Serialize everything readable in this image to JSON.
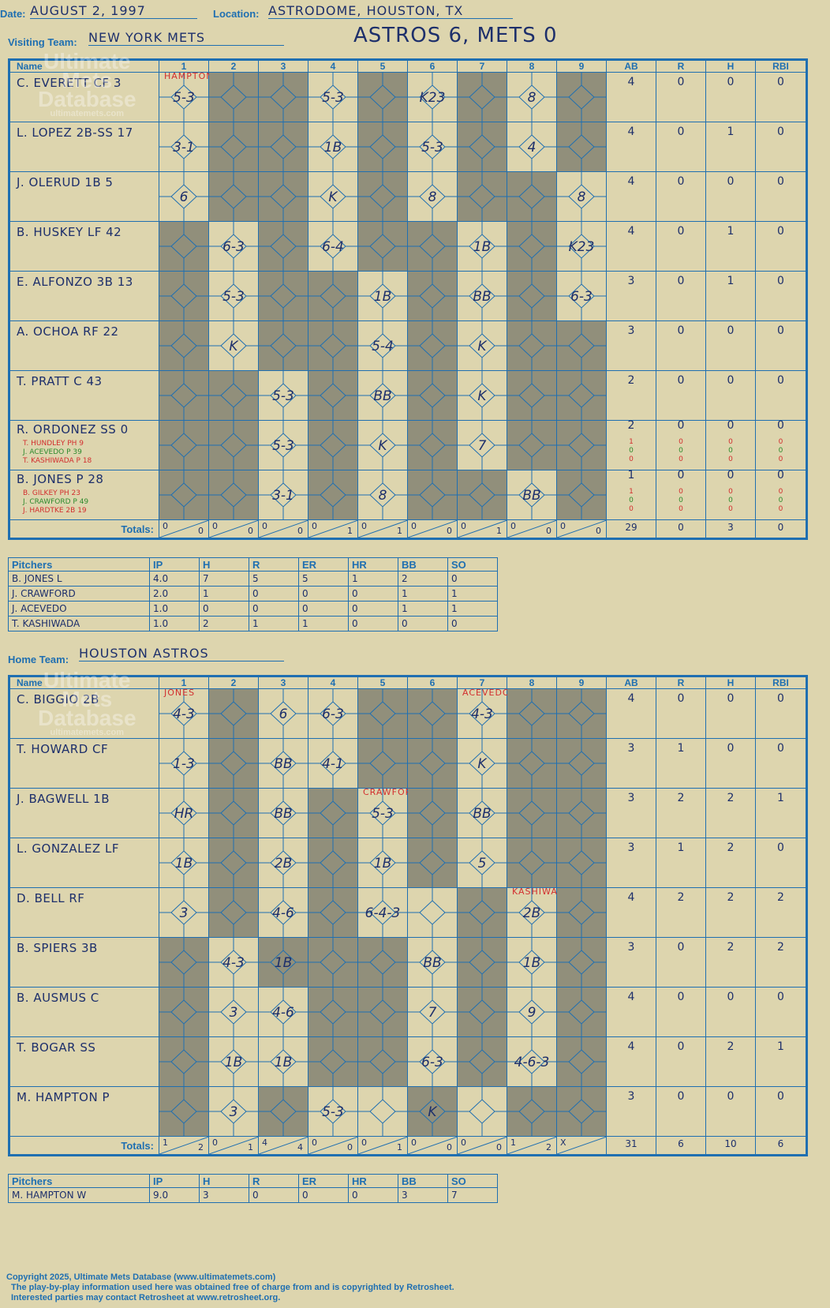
{
  "header": {
    "date_label": "Date:",
    "date": "AUGUST 2, 1997",
    "location_label": "Location:",
    "location": "ASTRODOME, HOUSTON, TX",
    "visiting_label": "Visiting Team:",
    "visiting": "NEW YORK METS",
    "score_title": "ASTROS 6, METS 0",
    "home_label": "Home Team:",
    "home": "HOUSTON ASTROS"
  },
  "columns": [
    "Name",
    "1",
    "2",
    "3",
    "4",
    "5",
    "6",
    "7",
    "8",
    "9",
    "AB",
    "R",
    "H",
    "RBI"
  ],
  "totals_label": "Totals:",
  "watermark": {
    "line1": "Ultimate",
    "line2": "Mets",
    "line3": "Database",
    "url": "ultimatemets.com"
  },
  "visitors": {
    "pitcher_marks": {
      "1": "HAMPTON"
    },
    "batters": [
      {
        "name": "C. EVERETT  CF  3",
        "ab": "4",
        "r": "0",
        "h": "0",
        "rbi": "0"
      },
      {
        "name": "L. LOPEZ  2B-SS  17",
        "ab": "4",
        "r": "0",
        "h": "1",
        "rbi": "0"
      },
      {
        "name": "J. OLERUD  1B   5",
        "ab": "4",
        "r": "0",
        "h": "0",
        "rbi": "0"
      },
      {
        "name": "B. HUSKEY  LF   42",
        "ab": "4",
        "r": "0",
        "h": "1",
        "rbi": "0"
      },
      {
        "name": "E. ALFONZO  3B   13",
        "ab": "3",
        "r": "0",
        "h": "1",
        "rbi": "0"
      },
      {
        "name": "A. OCHOA  RF   22",
        "ab": "3",
        "r": "0",
        "h": "0",
        "rbi": "0"
      },
      {
        "name": "T. PRATT  C   43",
        "ab": "2",
        "r": "0",
        "h": "0",
        "rbi": "0"
      },
      {
        "name": "R. ORDONEZ  SS   0",
        "ab": "2",
        "r": "0",
        "h": "0",
        "rbi": "0",
        "subs": [
          {
            "name": "T. HUNDLEY  PH  9",
            "color": "red",
            "ab": "1",
            "r": "0",
            "h": "0",
            "rbi": "0"
          },
          {
            "name": "J. ACEVEDO  P  39",
            "color": "green",
            "ab": "0",
            "r": "0",
            "h": "0",
            "rbi": "0"
          },
          {
            "name": "T. KASHIWADA  P  18",
            "color": "red",
            "ab": "0",
            "r": "0",
            "h": "0",
            "rbi": "0"
          }
        ]
      },
      {
        "name": "B. JONES  P   28",
        "ab": "1",
        "r": "0",
        "h": "0",
        "rbi": "0",
        "subs": [
          {
            "name": "B. GILKEY  PH  23",
            "color": "red",
            "ab": "1",
            "r": "0",
            "h": "0",
            "rbi": "0"
          },
          {
            "name": "J. CRAWFORD  P  49",
            "color": "green",
            "ab": "0",
            "r": "0",
            "h": "0",
            "rbi": "0"
          },
          {
            "name": "J. HARDTKE  2B  19",
            "color": "red",
            "ab": "0",
            "r": "0",
            "h": "0",
            "rbi": "0"
          }
        ]
      }
    ],
    "plays": [
      {
        "1": "5-3",
        "4": "5-3",
        "6": "K23",
        "8": "8"
      },
      {
        "1": "3-1",
        "4": "1B",
        "6": "5-3",
        "8": "4"
      },
      {
        "1": "6",
        "4": "K",
        "6": "8",
        "9": "8"
      },
      {
        "2": "6-3",
        "4": "6-4",
        "7": "1B",
        "9": "K23"
      },
      {
        "2": "5-3",
        "5": "1B",
        "7": "BB",
        "9": "6-3"
      },
      {
        "2": "K",
        "5": "5-4",
        "7": "K"
      },
      {
        "3": "5-3",
        "5": "BB",
        "7": "K"
      },
      {
        "3": "5-3",
        "5": "K",
        "7": "7"
      },
      {
        "3": "3-1",
        "5": "8",
        "8": "BB"
      }
    ],
    "dark": [
      [
        2,
        3,
        5,
        7,
        9
      ],
      [
        2,
        3,
        5,
        7,
        9
      ],
      [
        2,
        3,
        5,
        7,
        8
      ],
      [
        1,
        3,
        5,
        6,
        8
      ],
      [
        1,
        3,
        4,
        6,
        8
      ],
      [
        1,
        3,
        4,
        6,
        8,
        9
      ],
      [
        1,
        2,
        4,
        6,
        8,
        9
      ],
      [
        1,
        2,
        4,
        6,
        8,
        9
      ],
      [
        1,
        2,
        4,
        6,
        7,
        9
      ]
    ],
    "totals_rh": [
      [
        "0",
        "0"
      ],
      [
        "0",
        "0"
      ],
      [
        "0",
        "0"
      ],
      [
        "0",
        "1"
      ],
      [
        "0",
        "1"
      ],
      [
        "0",
        "0"
      ],
      [
        "0",
        "1"
      ],
      [
        "0",
        "0"
      ],
      [
        "0",
        "0"
      ]
    ],
    "totals": {
      "ab": "29",
      "r": "0",
      "h": "3",
      "rbi": "0"
    },
    "pitchers_header": [
      "Pitchers",
      "IP",
      "H",
      "R",
      "ER",
      "HR",
      "BB",
      "SO"
    ],
    "pitchers": [
      [
        "B. JONES   L",
        "4.0",
        "7",
        "5",
        "5",
        "1",
        "2",
        "0"
      ],
      [
        "J. CRAWFORD",
        "2.0",
        "1",
        "0",
        "0",
        "0",
        "1",
        "1"
      ],
      [
        "J. ACEVEDO",
        "1.0",
        "0",
        "0",
        "0",
        "0",
        "1",
        "1"
      ],
      [
        "T. KASHIWADA",
        "1.0",
        "2",
        "1",
        "1",
        "0",
        "0",
        "0"
      ]
    ]
  },
  "home_team": {
    "pitcher_marks": {
      "1": "JONES",
      "7": "ACEVEDO"
    },
    "batters": [
      {
        "name": "C. BIGGIO  2B",
        "ab": "4",
        "r": "0",
        "h": "0",
        "rbi": "0"
      },
      {
        "name": "T. HOWARD  CF",
        "ab": "3",
        "r": "1",
        "h": "0",
        "rbi": "0"
      },
      {
        "name": "J. BAGWELL  1B",
        "ab": "3",
        "r": "2",
        "h": "2",
        "rbi": "1"
      },
      {
        "name": "L. GONZALEZ  LF",
        "ab": "3",
        "r": "1",
        "h": "2",
        "rbi": "0"
      },
      {
        "name": "D. BELL  RF",
        "ab": "4",
        "r": "2",
        "h": "2",
        "rbi": "2"
      },
      {
        "name": "B. SPIERS  3B",
        "ab": "3",
        "r": "0",
        "h": "2",
        "rbi": "2"
      },
      {
        "name": "B. AUSMUS  C",
        "ab": "4",
        "r": "0",
        "h": "0",
        "rbi": "0"
      },
      {
        "name": "T. BOGAR  SS",
        "ab": "4",
        "r": "0",
        "h": "2",
        "rbi": "1"
      },
      {
        "name": "M. HAMPTON  P",
        "ab": "3",
        "r": "0",
        "h": "0",
        "rbi": "0"
      }
    ],
    "plays": [
      {
        "1": "4-3",
        "3": "6",
        "4": "6-3",
        "7": "4-3"
      },
      {
        "1": "1-3",
        "3": "BB",
        "4": "4-1",
        "7": "K"
      },
      {
        "1": "HR",
        "3": "BB",
        "5": "5-3",
        "7": "BB"
      },
      {
        "1": "1B",
        "3": "2B",
        "5": "1B",
        "7": "5"
      },
      {
        "1": "3",
        "3": "4-6",
        "5": "6-4-3",
        "8": "2B"
      },
      {
        "2": "4-3",
        "3": "1B",
        "6": "BB",
        "8": "1B"
      },
      {
        "2": "3",
        "3": "4-6",
        "6": "7",
        "8": "9"
      },
      {
        "2": "1B",
        "3": "1B",
        "6": "6-3",
        "8": "4-6-3"
      },
      {
        "2": "3",
        "4": "5-3",
        "6": "K"
      }
    ],
    "run_marks": {
      "crawford": "CRAWFORD",
      "kashiwada": "KASHIWADA"
    },
    "dark": [
      [
        2,
        5,
        6,
        8,
        9
      ],
      [
        2,
        5,
        6,
        8,
        9
      ],
      [
        2,
        4,
        6,
        8,
        9
      ],
      [
        2,
        4,
        6,
        8,
        9
      ],
      [
        2,
        4,
        7,
        9
      ],
      [
        1,
        3,
        4,
        5,
        7,
        9
      ],
      [
        1,
        4,
        5,
        7,
        9
      ],
      [
        1,
        4,
        5,
        7,
        9
      ],
      [
        1,
        3,
        6,
        8,
        9
      ]
    ],
    "totals_rh": [
      [
        "1",
        "2"
      ],
      [
        "0",
        "1"
      ],
      [
        "4",
        "4"
      ],
      [
        "0",
        "0"
      ],
      [
        "0",
        "1"
      ],
      [
        "0",
        "0"
      ],
      [
        "0",
        "0"
      ],
      [
        "1",
        "2"
      ],
      [
        "X",
        ""
      ]
    ],
    "totals": {
      "ab": "31",
      "r": "6",
      "h": "10",
      "rbi": "6"
    },
    "pitchers_header": [
      "Pitchers",
      "IP",
      "H",
      "R",
      "ER",
      "HR",
      "BB",
      "SO"
    ],
    "pitchers": [
      [
        "M. HAMPTON  W",
        "9.0",
        "3",
        "0",
        "0",
        "0",
        "3",
        "7"
      ]
    ]
  },
  "copyright": {
    "line1": "Copyright 2025, Ultimate Mets Database (www.ultimatemets.com)",
    "line2": "The play-by-play information used here was obtained free of charge from and is copyrighted by Retrosheet.",
    "line3": "Interested parties may contact Retrosheet at www.retrosheet.org."
  }
}
